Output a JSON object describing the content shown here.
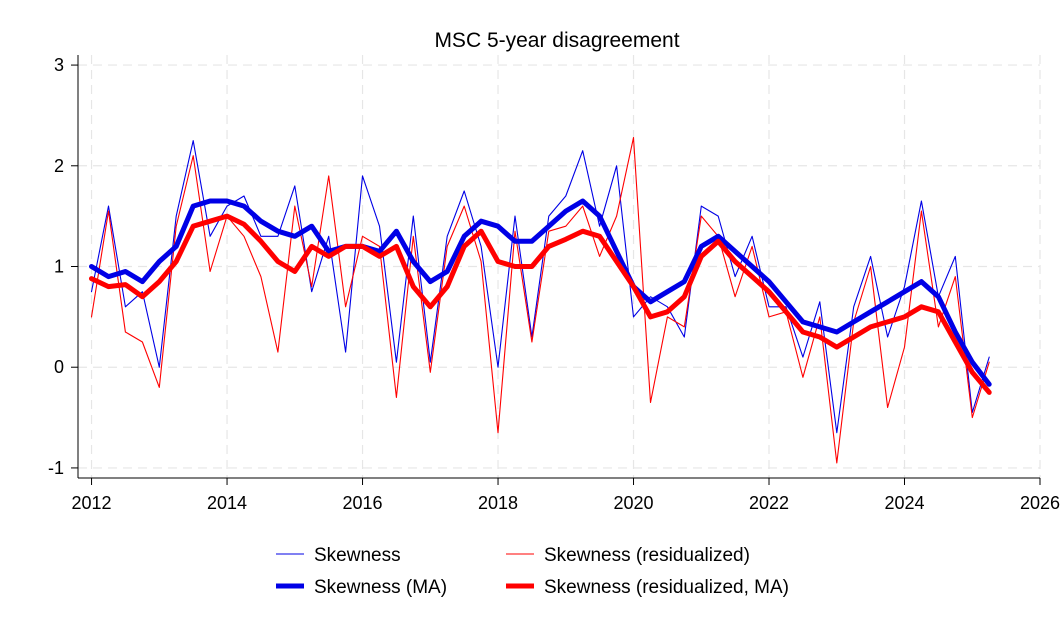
{
  "chart_data": {
    "type": "line",
    "title": "MSC 5-year disagreement",
    "xlabel": "",
    "ylabel": "",
    "xlim": [
      2011.8,
      2026.0
    ],
    "ylim": [
      -1.1,
      3.1
    ],
    "x_ticks": [
      2012,
      2014,
      2016,
      2018,
      2020,
      2022,
      2024,
      2026
    ],
    "y_ticks": [
      -1,
      0,
      1,
      2,
      3
    ],
    "grid": true,
    "legend_position": "bottom",
    "series": [
      {
        "name": "Skewness",
        "color": "#0000e6",
        "style": "thin",
        "x": [
          2012.0,
          2012.25,
          2012.5,
          2012.75,
          2013.0,
          2013.25,
          2013.5,
          2013.75,
          2014.0,
          2014.25,
          2014.5,
          2014.75,
          2015.0,
          2015.25,
          2015.5,
          2015.75,
          2016.0,
          2016.25,
          2016.5,
          2016.75,
          2017.0,
          2017.25,
          2017.5,
          2017.75,
          2018.0,
          2018.25,
          2018.5,
          2018.75,
          2019.0,
          2019.25,
          2019.5,
          2019.75,
          2020.0,
          2020.25,
          2020.5,
          2020.75,
          2021.0,
          2021.25,
          2021.5,
          2021.75,
          2022.0,
          2022.25,
          2022.5,
          2022.75,
          2023.0,
          2023.25,
          2023.5,
          2023.75,
          2024.0,
          2024.25,
          2024.5,
          2024.75,
          2025.0,
          2025.25
        ],
        "y": [
          0.75,
          1.6,
          0.6,
          0.75,
          0.0,
          1.5,
          2.25,
          1.3,
          1.6,
          1.7,
          1.3,
          1.3,
          1.8,
          0.75,
          1.3,
          0.15,
          1.9,
          1.4,
          0.05,
          1.5,
          0.05,
          1.3,
          1.75,
          1.2,
          0.0,
          1.5,
          0.3,
          1.5,
          1.7,
          2.15,
          1.4,
          2.0,
          0.5,
          0.7,
          0.6,
          0.3,
          1.6,
          1.5,
          0.9,
          1.3,
          0.6,
          0.6,
          0.1,
          0.65,
          -0.65,
          0.6,
          1.1,
          0.3,
          0.8,
          1.65,
          0.7,
          1.1,
          -0.45,
          0.1
        ]
      },
      {
        "name": "Skewness (MA)",
        "color": "#0000e6",
        "style": "thick",
        "x": [
          2012.0,
          2012.25,
          2012.5,
          2012.75,
          2013.0,
          2013.25,
          2013.5,
          2013.75,
          2014.0,
          2014.25,
          2014.5,
          2014.75,
          2015.0,
          2015.25,
          2015.5,
          2015.75,
          2016.0,
          2016.25,
          2016.5,
          2016.75,
          2017.0,
          2017.25,
          2017.5,
          2017.75,
          2018.0,
          2018.25,
          2018.5,
          2018.75,
          2019.0,
          2019.25,
          2019.5,
          2019.75,
          2020.0,
          2020.25,
          2020.5,
          2020.75,
          2021.0,
          2021.25,
          2021.5,
          2021.75,
          2022.0,
          2022.25,
          2022.5,
          2022.75,
          2023.0,
          2023.25,
          2023.5,
          2023.75,
          2024.0,
          2024.25,
          2024.5,
          2024.75,
          2025.0,
          2025.25
        ],
        "y": [
          1.0,
          0.9,
          0.95,
          0.85,
          1.05,
          1.2,
          1.6,
          1.65,
          1.65,
          1.6,
          1.45,
          1.35,
          1.3,
          1.4,
          1.15,
          1.2,
          1.2,
          1.15,
          1.35,
          1.05,
          0.85,
          0.95,
          1.3,
          1.45,
          1.4,
          1.25,
          1.25,
          1.4,
          1.55,
          1.65,
          1.5,
          1.15,
          0.8,
          0.65,
          0.75,
          0.85,
          1.2,
          1.3,
          1.15,
          1.0,
          0.85,
          0.65,
          0.45,
          0.4,
          0.35,
          0.45,
          0.55,
          0.65,
          0.75,
          0.85,
          0.7,
          0.35,
          0.05,
          -0.17
        ]
      },
      {
        "name": "Skewness (residualized)",
        "color": "#ff0000",
        "style": "thin",
        "x": [
          2012.0,
          2012.25,
          2012.5,
          2012.75,
          2013.0,
          2013.25,
          2013.5,
          2013.75,
          2014.0,
          2014.25,
          2014.5,
          2014.75,
          2015.0,
          2015.25,
          2015.5,
          2015.75,
          2016.0,
          2016.25,
          2016.5,
          2016.75,
          2017.0,
          2017.25,
          2017.5,
          2017.75,
          2018.0,
          2018.25,
          2018.5,
          2018.75,
          2019.0,
          2019.25,
          2019.5,
          2019.75,
          2020.0,
          2020.25,
          2020.5,
          2020.75,
          2021.0,
          2021.25,
          2021.5,
          2021.75,
          2022.0,
          2022.25,
          2022.5,
          2022.75,
          2023.0,
          2023.25,
          2023.5,
          2023.75,
          2024.0,
          2024.25,
          2024.5,
          2024.75,
          2025.0,
          2025.25
        ],
        "y": [
          0.5,
          1.55,
          0.35,
          0.25,
          -0.2,
          1.4,
          2.1,
          0.95,
          1.5,
          1.3,
          0.9,
          0.15,
          1.6,
          0.8,
          1.9,
          0.6,
          1.3,
          1.2,
          -0.3,
          1.3,
          -0.05,
          1.2,
          1.6,
          1.05,
          -0.65,
          1.35,
          0.25,
          1.35,
          1.4,
          1.6,
          1.1,
          1.5,
          2.28,
          -0.35,
          0.5,
          0.4,
          1.5,
          1.3,
          0.7,
          1.2,
          0.5,
          0.55,
          -0.1,
          0.5,
          -0.95,
          0.45,
          1.0,
          -0.4,
          0.2,
          1.55,
          0.4,
          0.9,
          -0.5,
          0.05
        ]
      },
      {
        "name": "Skewness (residualized, MA)",
        "color": "#ff0000",
        "style": "thick",
        "x": [
          2012.0,
          2012.25,
          2012.5,
          2012.75,
          2013.0,
          2013.25,
          2013.5,
          2013.75,
          2014.0,
          2014.25,
          2014.5,
          2014.75,
          2015.0,
          2015.25,
          2015.5,
          2015.75,
          2016.0,
          2016.25,
          2016.5,
          2016.75,
          2017.0,
          2017.25,
          2017.5,
          2017.75,
          2018.0,
          2018.25,
          2018.5,
          2018.75,
          2019.0,
          2019.25,
          2019.5,
          2019.75,
          2020.0,
          2020.25,
          2020.5,
          2020.75,
          2021.0,
          2021.25,
          2021.5,
          2021.75,
          2022.0,
          2022.25,
          2022.5,
          2022.75,
          2023.0,
          2023.25,
          2023.5,
          2023.75,
          2024.0,
          2024.25,
          2024.5,
          2024.75,
          2025.0,
          2025.25
        ],
        "y": [
          0.88,
          0.8,
          0.82,
          0.7,
          0.85,
          1.05,
          1.4,
          1.45,
          1.5,
          1.42,
          1.25,
          1.05,
          0.95,
          1.2,
          1.1,
          1.2,
          1.2,
          1.1,
          1.2,
          0.8,
          0.6,
          0.8,
          1.2,
          1.35,
          1.05,
          1.0,
          1.0,
          1.2,
          1.27,
          1.35,
          1.3,
          1.05,
          0.8,
          0.5,
          0.55,
          0.7,
          1.1,
          1.25,
          1.05,
          0.9,
          0.75,
          0.55,
          0.35,
          0.3,
          0.2,
          0.3,
          0.4,
          0.45,
          0.5,
          0.6,
          0.55,
          0.25,
          -0.05,
          -0.25
        ]
      }
    ]
  }
}
